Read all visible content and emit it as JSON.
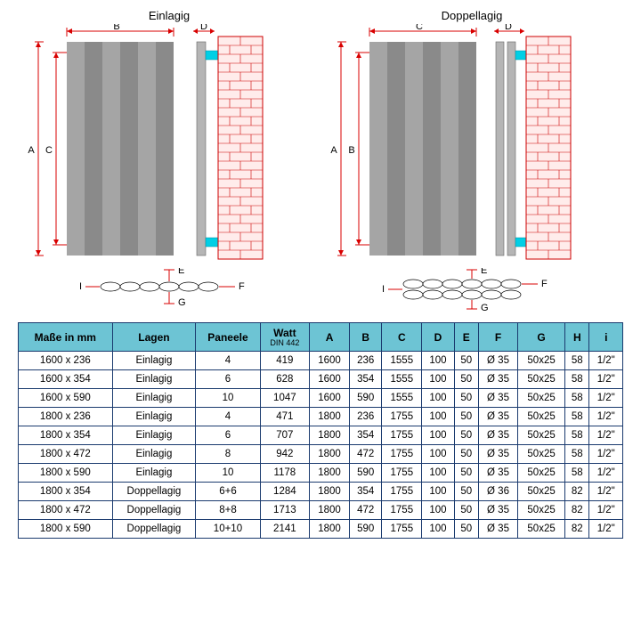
{
  "diagrams": {
    "left_title": "Einlagig",
    "right_title": "Doppellagig",
    "labels": {
      "A": "A",
      "B": "B",
      "C": "C",
      "D": "D",
      "E": "E",
      "F": "F",
      "G": "G",
      "H": "H"
    },
    "panel_fill": "#8a8a8a",
    "dim_color": "#d80000",
    "brick_fill": "#ffeceb",
    "brick_stroke": "#c00",
    "bracket_fill": "#00cfe5",
    "table_border": "#1a3a6e",
    "header_bg": "#6dc4d4"
  },
  "table": {
    "headers": [
      "Maße in mm",
      "Lagen",
      "Paneele",
      "Watt",
      "A",
      "B",
      "C",
      "D",
      "E",
      "F",
      "G",
      "H",
      "i"
    ],
    "watt_sub": "DIN 442",
    "rows": [
      [
        "1600 x 236",
        "Einlagig",
        "4",
        "419",
        "1600",
        "236",
        "1555",
        "100",
        "50",
        "Ø 35",
        "50x25",
        "58",
        "1/2\""
      ],
      [
        "1600 x 354",
        "Einlagig",
        "6",
        "628",
        "1600",
        "354",
        "1555",
        "100",
        "50",
        "Ø 35",
        "50x25",
        "58",
        "1/2\""
      ],
      [
        "1600 x 590",
        "Einlagig",
        "10",
        "1047",
        "1600",
        "590",
        "1555",
        "100",
        "50",
        "Ø 35",
        "50x25",
        "58",
        "1/2\""
      ],
      [
        "1800 x 236",
        "Einlagig",
        "4",
        "471",
        "1800",
        "236",
        "1755",
        "100",
        "50",
        "Ø 35",
        "50x25",
        "58",
        "1/2\""
      ],
      [
        "1800 x 354",
        "Einlagig",
        "6",
        "707",
        "1800",
        "354",
        "1755",
        "100",
        "50",
        "Ø 35",
        "50x25",
        "58",
        "1/2\""
      ],
      [
        "1800 x 472",
        "Einlagig",
        "8",
        "942",
        "1800",
        "472",
        "1755",
        "100",
        "50",
        "Ø 35",
        "50x25",
        "58",
        "1/2\""
      ],
      [
        "1800 x 590",
        "Einlagig",
        "10",
        "1178",
        "1800",
        "590",
        "1755",
        "100",
        "50",
        "Ø 35",
        "50x25",
        "58",
        "1/2\""
      ],
      [
        "1800 x 354",
        "Doppellagig",
        "6+6",
        "1284",
        "1800",
        "354",
        "1755",
        "100",
        "50",
        "Ø 36",
        "50x25",
        "82",
        "1/2\""
      ],
      [
        "1800 x 472",
        "Doppellagig",
        "8+8",
        "1713",
        "1800",
        "472",
        "1755",
        "100",
        "50",
        "Ø 35",
        "50x25",
        "82",
        "1/2\""
      ],
      [
        "1800 x 590",
        "Doppellagig",
        "10+10",
        "2141",
        "1800",
        "590",
        "1755",
        "100",
        "50",
        "Ø 35",
        "50x25",
        "82",
        "1/2\""
      ]
    ]
  }
}
